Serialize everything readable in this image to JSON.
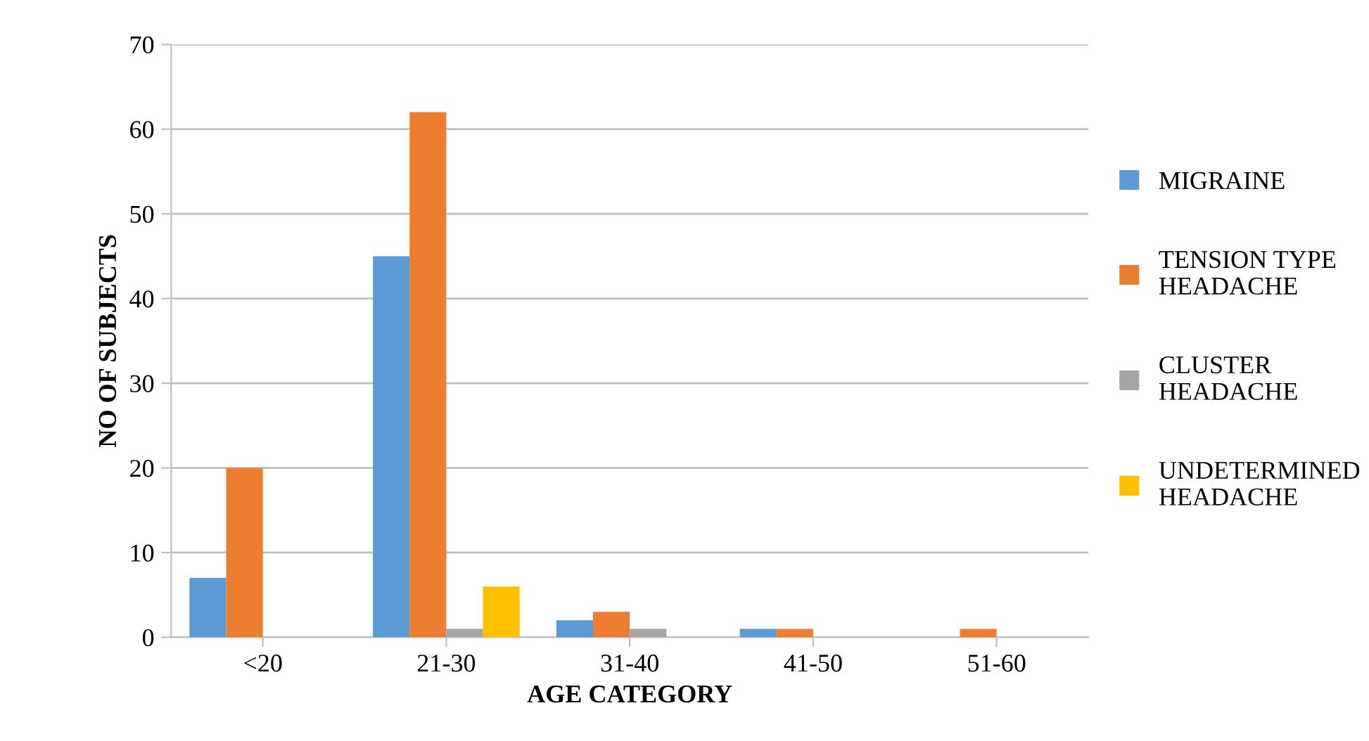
{
  "chart_data": {
    "type": "bar",
    "xlabel": "AGE CATEGORY",
    "ylabel": "NO OF SUBJECTS",
    "categories": [
      "<20",
      "21-30",
      "31-40",
      "41-50",
      "51-60"
    ],
    "series": [
      {
        "name": "MIGRAINE",
        "color": "#5b9bd5",
        "values": [
          7,
          45,
          2,
          1,
          0
        ]
      },
      {
        "name": "TENSION TYPE\nHEADACHE",
        "color": "#ed7d31",
        "values": [
          20,
          62,
          3,
          1,
          1
        ]
      },
      {
        "name": "CLUSTER\nHEADACHE",
        "color": "#a5a5a5",
        "values": [
          0,
          1,
          1,
          0,
          0
        ]
      },
      {
        "name": "UNDETERMINED\nHEADACHE",
        "color": "#ffc000",
        "values": [
          0,
          6,
          0,
          0,
          0
        ]
      }
    ],
    "ylim": [
      0,
      70
    ],
    "yticks": [
      0,
      10,
      20,
      30,
      40,
      50,
      60,
      70
    ],
    "grid": "y",
    "legend": "right"
  }
}
